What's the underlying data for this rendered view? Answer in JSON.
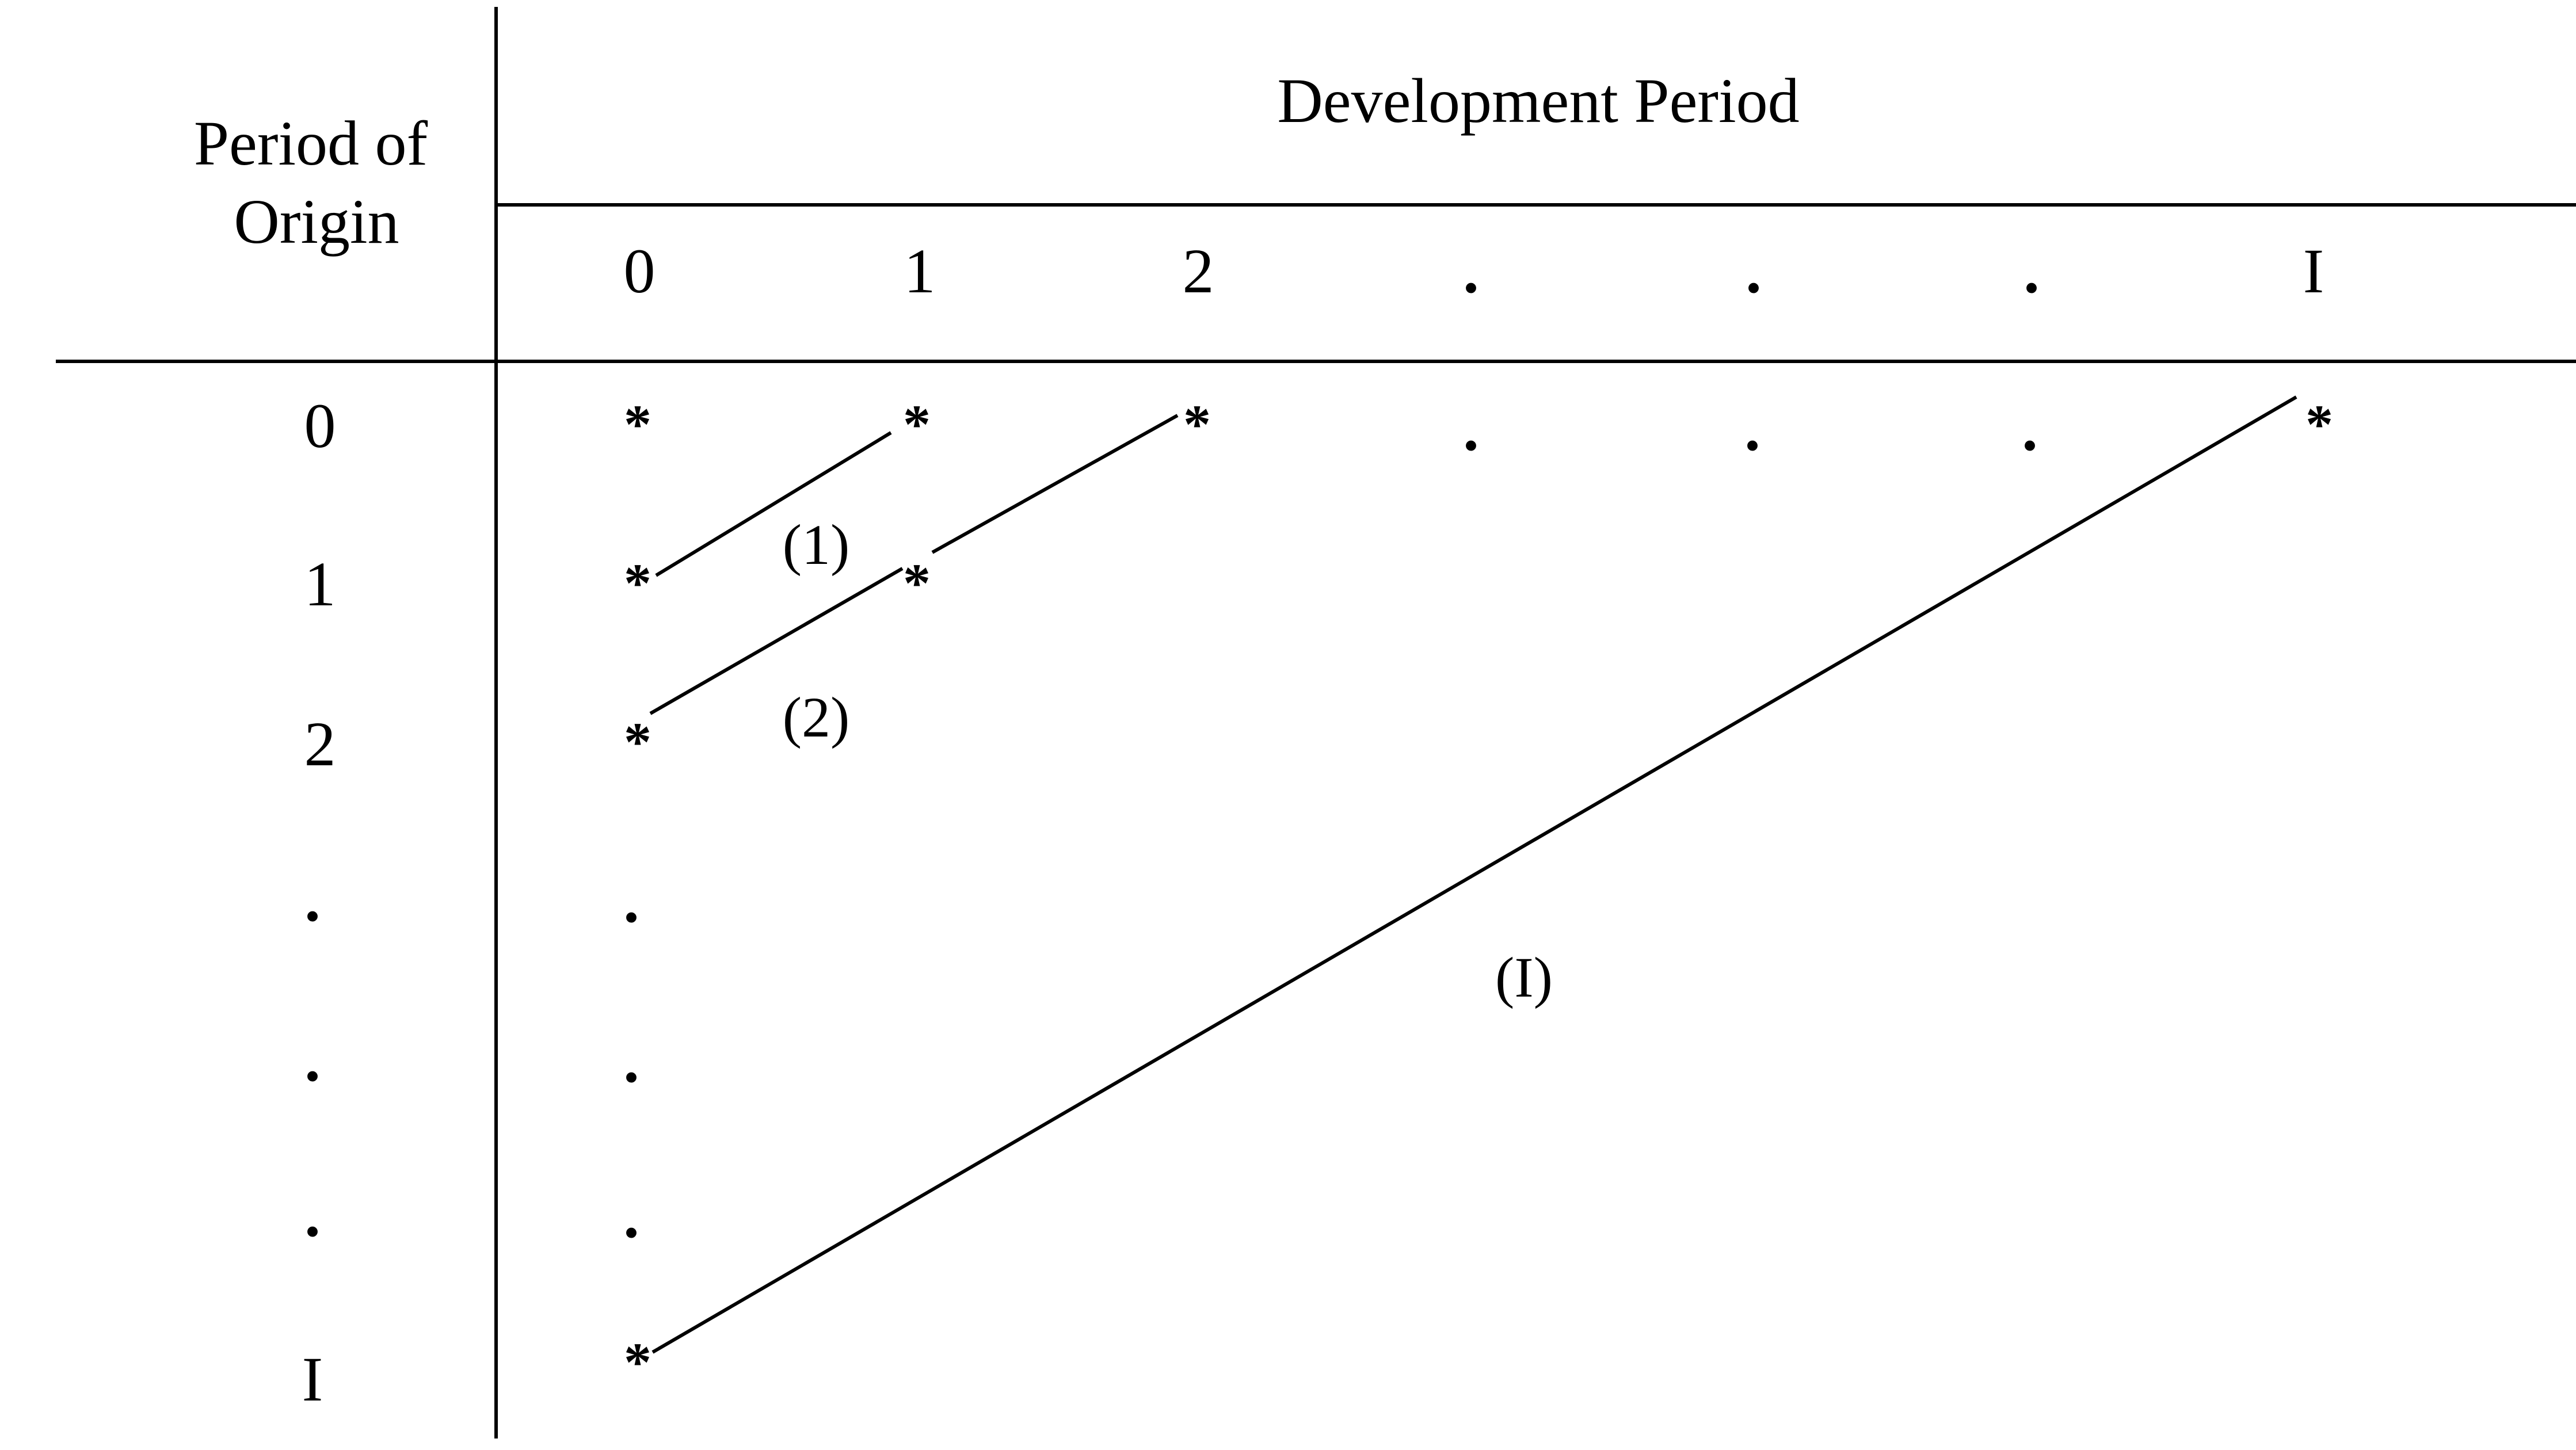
{
  "header": {
    "row_header_line1": "Period of",
    "row_header_line2": "Origin",
    "column_header": "Development Period"
  },
  "columns": [
    "0",
    "1",
    "2",
    ".",
    ".",
    ".",
    "I"
  ],
  "rows": [
    "0",
    "1",
    "2",
    ".",
    ".",
    ".",
    "I"
  ],
  "cells": {
    "row0": [
      "*",
      "*",
      "*",
      ".",
      ".",
      ".",
      "*"
    ],
    "row1": [
      "*",
      "*"
    ],
    "row2": [
      "*"
    ],
    "row3": [
      "."
    ],
    "row4": [
      "."
    ],
    "row5": [
      "."
    ],
    "rowI": [
      "*"
    ]
  },
  "diagonals": [
    {
      "label": "(1)",
      "from_row": 1,
      "to_row": 0
    },
    {
      "label": "(2)",
      "from_row": 2,
      "to_row": 0
    },
    {
      "label": "(I)",
      "from_row": 6,
      "to_row": 0
    }
  ]
}
